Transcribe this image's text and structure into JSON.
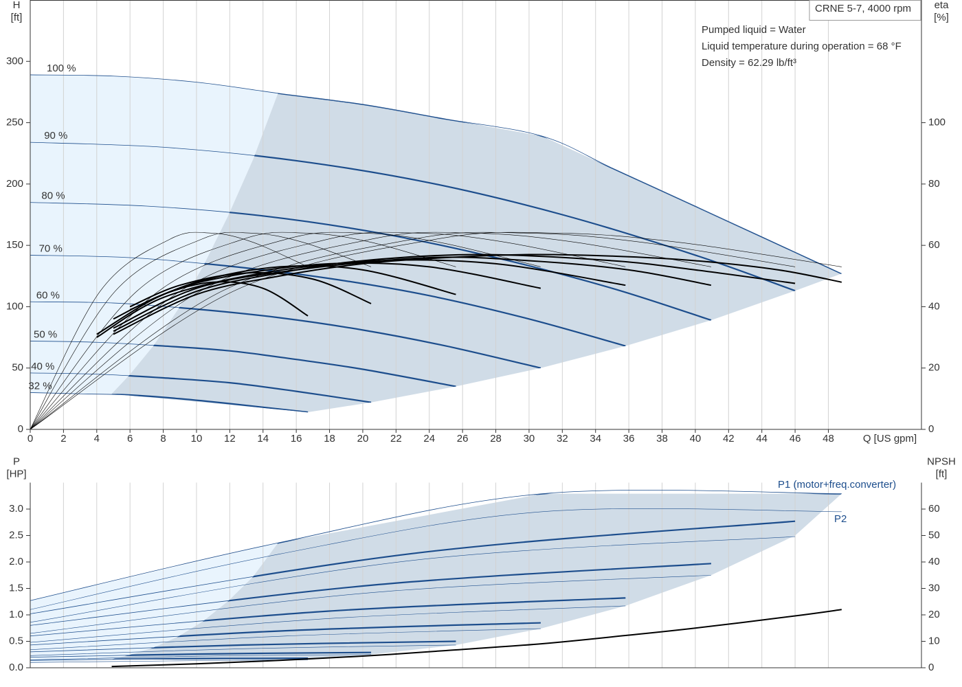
{
  "chart_data": [
    {
      "type": "line",
      "title": "CRNE 5-7, 4000 rpm",
      "info": [
        "Pumped liquid = Water",
        "Liquid temperature during operation = 68 °F",
        "Density = 62.29 lb/ft³"
      ],
      "ylabel": "H",
      "yunit": "[ft]",
      "y2label": "eta",
      "y2unit": "[%]",
      "xlabel": "Q [US gpm]",
      "xlim": [
        0,
        53.6
      ],
      "ylim": [
        0,
        350
      ],
      "y2lim": [
        0,
        140
      ],
      "xticks": [
        0,
        2,
        4,
        6,
        8,
        10,
        12,
        14,
        16,
        18,
        20,
        22,
        24,
        26,
        28,
        30,
        32,
        34,
        36,
        38,
        40,
        42,
        44,
        46,
        48
      ],
      "yticks": [
        0,
        50,
        100,
        150,
        200,
        250,
        300
      ],
      "y2ticks": [
        0,
        20,
        40,
        60,
        80,
        100
      ],
      "grid": "x",
      "extended_area": {
        "color": "#e9f4fd",
        "x": [
          0,
          0,
          5,
          10,
          14.9,
          13.4,
          11.9,
          10.4,
          8.9,
          7.4,
          5.95,
          4.9
        ],
        "values": [
          30,
          289,
          288,
          283,
          274,
          220,
          174,
          133,
          98,
          68,
          44,
          29
        ]
      },
      "operating_area": {
        "color": "#d0dce7",
        "x": [
          4.9,
          5.95,
          7.4,
          8.9,
          10.4,
          11.9,
          13.4,
          14.9,
          20,
          25,
          30.8,
          48.8,
          46,
          40.95,
          35.8,
          30.7,
          25.6,
          20.5,
          16.7
        ],
        "values": [
          29,
          44,
          68,
          98,
          133,
          174,
          220,
          274,
          265,
          253,
          239,
          127,
          113,
          89,
          68,
          50,
          35,
          22,
          14
        ]
      },
      "series": [
        {
          "name": "100 %",
          "color": "#1c4d8c",
          "style": "area-bold",
          "axis": "y",
          "x": [
            0,
            5,
            10,
            14.9,
            20,
            25,
            30.8,
            35,
            40,
            44,
            48.8
          ],
          "values": [
            289,
            288,
            283,
            274,
            265,
            253,
            239,
            213,
            182,
            157,
            127
          ]
        },
        {
          "name": "90 %",
          "color": "#1c4d8c",
          "style": "area-bold",
          "axis": "y",
          "x": [
            0,
            8,
            16,
            24,
            32,
            40,
            46
          ],
          "values": [
            234,
            230,
            219,
            201,
            175,
            142,
            113
          ]
        },
        {
          "name": "80 %",
          "color": "#1c4d8c",
          "style": "area-bold",
          "axis": "y",
          "x": [
            0,
            7,
            14,
            21,
            28,
            35,
            40.95
          ],
          "values": [
            185,
            182,
            174,
            160,
            140,
            115,
            89
          ]
        },
        {
          "name": "70 %",
          "color": "#1c4d8c",
          "style": "area-bold",
          "axis": "y",
          "x": [
            0,
            6,
            12,
            18,
            24,
            30,
            35.8
          ],
          "values": [
            142,
            140,
            133,
            123,
            109,
            90,
            68
          ]
        },
        {
          "name": "60 %",
          "color": "#1c4d8c",
          "style": "area-bold",
          "axis": "y",
          "x": [
            0,
            5,
            10,
            15,
            20,
            25,
            30.7
          ],
          "values": [
            104,
            103,
            98,
            91,
            81,
            68,
            50
          ]
        },
        {
          "name": "50 %",
          "color": "#1c4d8c",
          "style": "area-bold",
          "axis": "y",
          "x": [
            0,
            4,
            8,
            12,
            16,
            20,
            25.6
          ],
          "values": [
            72,
            71,
            68,
            64,
            57,
            49,
            35
          ]
        },
        {
          "name": "40 %",
          "color": "#1c4d8c",
          "style": "area-bold",
          "axis": "y",
          "x": [
            0,
            4,
            8,
            12,
            16,
            20.5
          ],
          "values": [
            46,
            45,
            42,
            38,
            31,
            22
          ]
        },
        {
          "name": "32 %",
          "color": "#1c4d8c",
          "style": "area-bold",
          "axis": "y",
          "x": [
            0,
            3,
            6,
            9,
            12,
            16.7
          ],
          "values": [
            30,
            29,
            28,
            25,
            21,
            14
          ]
        },
        {
          "color": "#000000",
          "style": "thin",
          "axis": "y2",
          "x": [
            0,
            12.2,
            24.4,
            31.7,
            39,
            48.8
          ],
          "values": [
            0,
            45,
            62,
            64,
            61,
            53
          ]
        },
        {
          "color": "#000000",
          "style": "thin",
          "axis": "y2",
          "x": [
            0,
            11.5,
            23,
            29.9,
            36.8,
            46
          ],
          "values": [
            0,
            45,
            62,
            64,
            61,
            53
          ]
        },
        {
          "color": "#000000",
          "style": "thin",
          "axis": "y2",
          "x": [
            0,
            10.2,
            20.5,
            26.6,
            32.8,
            40.95
          ],
          "values": [
            0,
            45,
            62,
            64,
            61,
            53
          ]
        },
        {
          "color": "#000000",
          "style": "thin",
          "axis": "y2",
          "x": [
            0,
            9,
            17.9,
            23.3,
            28.6,
            35.8
          ],
          "values": [
            0,
            45,
            62,
            64,
            61,
            53
          ]
        },
        {
          "color": "#000000",
          "style": "thin",
          "axis": "y2",
          "x": [
            0,
            7.7,
            15.4,
            20,
            24.6,
            30.7
          ],
          "values": [
            0,
            45,
            62,
            64,
            61,
            53
          ]
        },
        {
          "color": "#000000",
          "style": "thin",
          "axis": "y2",
          "x": [
            0,
            6.4,
            12.8,
            16.6,
            20.5,
            25.6
          ],
          "values": [
            0,
            45,
            62,
            64,
            61,
            53
          ]
        },
        {
          "color": "#000000",
          "style": "thin",
          "axis": "y2",
          "x": [
            0,
            5.1,
            10.3,
            13.3,
            16.4,
            20.5
          ],
          "values": [
            0,
            45,
            62,
            64,
            61,
            53
          ]
        },
        {
          "color": "#000000",
          "style": "thin",
          "axis": "y2",
          "x": [
            0,
            4.2,
            8.4,
            10.9,
            13.4,
            16.7
          ],
          "values": [
            0,
            45,
            62,
            64,
            61,
            53
          ]
        },
        {
          "color": "#000000",
          "style": "bold",
          "axis": "y2",
          "x": [
            5,
            10,
            15,
            20,
            25,
            30,
            35,
            40,
            45,
            48.8
          ],
          "values": [
            31,
            44,
            50,
            54,
            56,
            57,
            56.5,
            55,
            52,
            48
          ]
        },
        {
          "color": "#000000",
          "style": "bold",
          "axis": "y2",
          "x": [
            5,
            10,
            15,
            20,
            27,
            35,
            40,
            46
          ],
          "values": [
            32,
            45,
            51,
            55,
            57,
            55,
            52,
            47.6
          ]
        },
        {
          "color": "#000000",
          "style": "bold",
          "axis": "y2",
          "x": [
            5,
            10,
            16,
            24,
            30,
            36,
            40.95
          ],
          "values": [
            33,
            46,
            52,
            56,
            55,
            52,
            47
          ]
        },
        {
          "color": "#000000",
          "style": "bold",
          "axis": "y2",
          "x": [
            4,
            8,
            14,
            21,
            28,
            35.8
          ],
          "values": [
            30,
            43,
            51,
            55,
            54,
            47
          ]
        },
        {
          "color": "#000000",
          "style": "bold",
          "axis": "y2",
          "x": [
            4,
            8,
            12,
            18,
            24,
            30.7
          ],
          "values": [
            31,
            44,
            50,
            54,
            53,
            46
          ]
        },
        {
          "color": "#000000",
          "style": "bold",
          "axis": "y2",
          "x": [
            6,
            10,
            15,
            20,
            25.6
          ],
          "values": [
            39,
            48,
            53,
            52,
            44
          ]
        },
        {
          "color": "#000000",
          "style": "bold",
          "axis": "y2",
          "x": [
            6,
            9,
            13,
            17,
            20.5
          ],
          "values": [
            40,
            47,
            51,
            49,
            41
          ]
        },
        {
          "color": "#000000",
          "style": "bold",
          "axis": "y2",
          "x": [
            5,
            8,
            11,
            14,
            16.7
          ],
          "values": [
            36,
            44,
            48,
            46,
            37
          ]
        }
      ]
    },
    {
      "type": "line",
      "ylabel": "P",
      "yunit": "[HP]",
      "y2label": "NPSH",
      "y2unit": "[ft]",
      "annotations": [
        "P1 (motor+freq.converter)",
        "P2"
      ],
      "xlim": [
        0,
        53.6
      ],
      "ylim": [
        0,
        3.5
      ],
      "y2lim": [
        0,
        70
      ],
      "sharex": true,
      "yticks": [
        {
          "value": 0,
          "label": "0.0"
        },
        0.5,
        {
          "value": 1,
          "label": "1.0"
        },
        1.5,
        {
          "value": 2,
          "label": "2.0"
        },
        2.5,
        {
          "value": 3,
          "label": "3.0"
        }
      ],
      "y2ticks": [
        0,
        10,
        20,
        30,
        40,
        50,
        60
      ],
      "grid": "x",
      "extended_area": {
        "color": "#e9f4fd",
        "x": [
          0,
          0,
          14.9,
          13.4,
          11.9,
          10.4,
          8.9,
          7.4,
          5.95,
          4.9
        ],
        "values": [
          0.1,
          1.27,
          2.36,
          1.72,
          1.26,
          0.88,
          0.59,
          0.38,
          0.24,
          0.16
        ]
      },
      "operating_area": {
        "color": "#d0dce7",
        "x": [
          4.9,
          5.95,
          7.4,
          8.9,
          10.4,
          11.9,
          13.4,
          14.9,
          30.8,
          48.8,
          46,
          40.95,
          35.8,
          30.7,
          25.6,
          20.5,
          16.7
        ],
        "values": [
          0.16,
          0.24,
          0.38,
          0.59,
          0.88,
          1.26,
          1.72,
          2.36,
          3.29,
          3.29,
          2.5,
          1.75,
          1.17,
          0.74,
          0.43,
          0.25,
          0.15
        ]
      },
      "series": [
        {
          "color": "#1c4d8c",
          "style": "area-bold",
          "axis": "y",
          "x": [
            0,
            14.9,
            30.8,
            48.8
          ],
          "values": [
            1.27,
            2.36,
            3.29,
            3.29
          ]
        },
        {
          "color": "#1c4d8c",
          "style": "area-bold",
          "axis": "y",
          "x": [
            0,
            23,
            46
          ],
          "values": [
            1.02,
            2.16,
            2.77
          ]
        },
        {
          "color": "#1c4d8c",
          "style": "area-bold",
          "axis": "y",
          "x": [
            0,
            20.5,
            40.95
          ],
          "values": [
            0.8,
            1.56,
            1.97
          ]
        },
        {
          "color": "#1c4d8c",
          "style": "area-bold",
          "axis": "y",
          "x": [
            0,
            17.9,
            35.8
          ],
          "values": [
            0.6,
            1.07,
            1.32
          ]
        },
        {
          "color": "#1c4d8c",
          "style": "area-bold",
          "axis": "y",
          "x": [
            0,
            15.35,
            30.7
          ],
          "values": [
            0.43,
            0.7,
            0.85
          ]
        },
        {
          "color": "#1c4d8c",
          "style": "area-bold",
          "axis": "y",
          "x": [
            0,
            12.8,
            25.6
          ],
          "values": [
            0.3,
            0.43,
            0.5
          ]
        },
        {
          "color": "#1c4d8c",
          "style": "area-bold",
          "axis": "y",
          "x": [
            0,
            10.25,
            20.5
          ],
          "values": [
            0.2,
            0.26,
            0.29
          ]
        },
        {
          "color": "#1c4d8c",
          "style": "area-bold",
          "axis": "y",
          "x": [
            0,
            8.35,
            16.7
          ],
          "values": [
            0.14,
            0.17,
            0.18
          ]
        },
        {
          "color": "#1c4d8c",
          "style": "thin",
          "axis": "y",
          "x": [
            0,
            15,
            30.8,
            48.8
          ],
          "values": [
            1.1,
            2.15,
            2.95,
            2.95
          ]
        },
        {
          "color": "#1c4d8c",
          "style": "thin",
          "axis": "y",
          "x": [
            0,
            23,
            46
          ],
          "values": [
            0.86,
            2.03,
            2.48
          ]
        },
        {
          "color": "#1c4d8c",
          "style": "thin",
          "axis": "y",
          "x": [
            0,
            20.5,
            40.95
          ],
          "values": [
            0.65,
            1.42,
            1.75
          ]
        },
        {
          "color": "#1c4d8c",
          "style": "thin",
          "axis": "y",
          "x": [
            0,
            17.9,
            35.8
          ],
          "values": [
            0.48,
            0.93,
            1.17
          ]
        },
        {
          "color": "#1c4d8c",
          "style": "thin",
          "axis": "y",
          "x": [
            0,
            15.35,
            30.7
          ],
          "values": [
            0.34,
            0.6,
            0.74
          ]
        },
        {
          "color": "#1c4d8c",
          "style": "thin",
          "axis": "y",
          "x": [
            0,
            12.8,
            25.6
          ],
          "values": [
            0.23,
            0.36,
            0.43
          ]
        },
        {
          "color": "#1c4d8c",
          "style": "thin",
          "axis": "y",
          "x": [
            0,
            10.25,
            20.5
          ],
          "values": [
            0.15,
            0.22,
            0.25
          ]
        },
        {
          "color": "#1c4d8c",
          "style": "thin",
          "axis": "y",
          "x": [
            0,
            8.35,
            16.7
          ],
          "values": [
            0.1,
            0.13,
            0.15
          ]
        },
        {
          "color": "#000000",
          "style": "bold",
          "axis": "y2",
          "x": [
            4.9,
            10,
            15,
            20,
            25,
            30.8,
            35.8,
            40,
            46,
            48.8
          ],
          "values": [
            0.5,
            1.5,
            2.8,
            4.4,
            6.5,
            9.1,
            12.2,
            15,
            19.6,
            22
          ]
        }
      ]
    }
  ]
}
